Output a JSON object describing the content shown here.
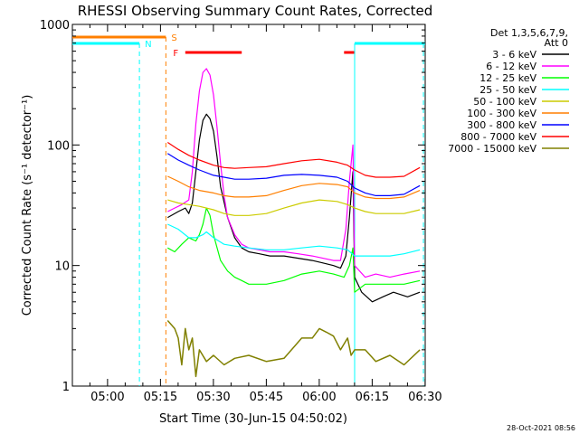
{
  "chart_data": {
    "type": "line",
    "title": "RHESSI Observing Summary Count Rates, Corrected",
    "xlabel": "Start Time (30-Jun-15 04:50:02)",
    "ylabel": "Corrected Count Rate (s⁻¹ detector⁻¹)",
    "yscale": "log",
    "ylim": [
      1,
      1000
    ],
    "xlim_minutes": [
      0,
      100
    ],
    "x_ticks": [
      {
        "min": 9.97,
        "label": "05:00"
      },
      {
        "min": 24.97,
        "label": "05:15"
      },
      {
        "min": 39.97,
        "label": "05:30"
      },
      {
        "min": 54.97,
        "label": "05:45"
      },
      {
        "min": 69.97,
        "label": "06:00"
      },
      {
        "min": 84.97,
        "label": "06:15"
      },
      {
        "min": 99.97,
        "label": "06:30"
      }
    ],
    "y_ticks": [
      {
        "value": 1,
        "label": "1"
      },
      {
        "value": 10,
        "label": "10"
      },
      {
        "value": 100,
        "label": "100"
      },
      {
        "value": 1000,
        "label": "1000"
      }
    ],
    "legend_header": [
      "Det 1,3,5,6,7,9,",
      "Att 0"
    ],
    "timestamp": "28-Oct-2021 08:56",
    "annotations": [
      {
        "label": "S",
        "color": "#ff7f00",
        "kind": "SAA"
      },
      {
        "label": "N",
        "color": "#00ffff",
        "kind": "Night"
      },
      {
        "label": "F",
        "color": "#ff0000",
        "kind": "Flare"
      }
    ],
    "intervals": {
      "saa_bar": [
        0,
        26.5
      ],
      "night_bars": [
        [
          0,
          19
        ],
        [
          80,
          100
        ]
      ],
      "flare_bars": [
        [
          32,
          48
        ],
        [
          77,
          80
        ]
      ],
      "cyan_lines": [
        19,
        80,
        99.5
      ],
      "orange_line": 26.5
    },
    "series": [
      {
        "name": "3 - 6 keV",
        "color": "#000000",
        "x": [
          27,
          30,
          32,
          33,
          34,
          35,
          36,
          37,
          38,
          39,
          40,
          41,
          42,
          44,
          46,
          48,
          50,
          53,
          56,
          60,
          64,
          68,
          71,
          74,
          76,
          77.5,
          78.5,
          79.5,
          80,
          82,
          85,
          88,
          91,
          95,
          98.5
        ],
        "y": [
          25,
          28,
          30,
          27,
          33,
          60,
          110,
          160,
          180,
          165,
          130,
          80,
          45,
          25,
          17,
          14,
          13,
          12.5,
          12,
          12,
          11.5,
          11,
          10.5,
          10,
          9.5,
          12,
          25,
          60,
          8,
          6,
          5,
          5.5,
          6,
          5.5,
          6
        ]
      },
      {
        "name": "6 - 12 keV",
        "color": "#ff00ff",
        "x": [
          27,
          29,
          31,
          33,
          34,
          35,
          36,
          37,
          38,
          39,
          40,
          41,
          42,
          43,
          44,
          46,
          48,
          50,
          53,
          56,
          60,
          64,
          68,
          71,
          74,
          76,
          77.5,
          78.5,
          79.5,
          80,
          83,
          86,
          90,
          94,
          98.5
        ],
        "y": [
          28,
          30,
          32,
          35,
          60,
          150,
          280,
          400,
          430,
          380,
          260,
          140,
          70,
          38,
          25,
          18,
          15,
          14,
          13.5,
          13,
          13,
          12.5,
          12,
          11.5,
          11,
          11,
          20,
          50,
          100,
          10,
          8,
          8.5,
          8,
          8.5,
          9
        ]
      },
      {
        "name": "12 - 25 keV",
        "color": "#00ff00",
        "x": [
          27,
          29,
          31,
          33,
          35,
          36,
          37,
          38,
          39,
          40,
          42,
          44,
          46,
          48,
          50,
          55,
          60,
          65,
          70,
          74,
          77,
          78.5,
          79.5,
          80,
          83,
          86,
          90,
          94,
          98.5
        ],
        "y": [
          14,
          13,
          15,
          17,
          16,
          18,
          22,
          30,
          26,
          18,
          11,
          9,
          8,
          7.5,
          7,
          7,
          7.5,
          8.5,
          9,
          8.5,
          8,
          10,
          14,
          6,
          7,
          7,
          7,
          7,
          7.5
        ]
      },
      {
        "name": "25 - 50 keV",
        "color": "#00ffff",
        "x": [
          27,
          30,
          33,
          35,
          37,
          38,
          40,
          43,
          46,
          50,
          55,
          60,
          65,
          70,
          75,
          78,
          80,
          83,
          86,
          90,
          94,
          98.5
        ],
        "y": [
          22,
          20,
          17,
          17,
          18,
          19,
          17,
          15,
          14.5,
          14,
          13.5,
          13.5,
          14,
          14.5,
          14,
          13.5,
          12,
          12,
          12,
          12,
          12.5,
          13.5
        ]
      },
      {
        "name": "50 - 100 keV",
        "color": "#cccc00",
        "x": [
          27,
          30,
          33,
          36,
          40,
          43,
          46,
          50,
          55,
          60,
          65,
          70,
          75,
          78,
          80,
          83,
          86,
          90,
          94,
          98.5
        ],
        "y": [
          35,
          33,
          32,
          31,
          29,
          27,
          26,
          26,
          27,
          30,
          33,
          35,
          34,
          32,
          30,
          28,
          27,
          27,
          27,
          29
        ]
      },
      {
        "name": "100 - 300 keV",
        "color": "#ff7f00",
        "x": [
          27,
          30,
          33,
          36,
          40,
          43,
          46,
          50,
          55,
          60,
          65,
          70,
          75,
          78,
          80,
          83,
          86,
          90,
          94,
          98.5
        ],
        "y": [
          55,
          50,
          45,
          42,
          40,
          38,
          37,
          37,
          38,
          42,
          46,
          48,
          47,
          45,
          40,
          37,
          36,
          36,
          37,
          42
        ]
      },
      {
        "name": "300 - 800 keV",
        "color": "#0000ff",
        "x": [
          27,
          30,
          33,
          36,
          40,
          43,
          46,
          50,
          55,
          60,
          65,
          70,
          75,
          78,
          80,
          83,
          86,
          90,
          94,
          98.5
        ],
        "y": [
          85,
          75,
          68,
          62,
          56,
          54,
          52,
          52,
          53,
          56,
          57,
          56,
          54,
          50,
          44,
          40,
          38,
          38,
          39,
          46
        ]
      },
      {
        "name": "800 - 7000 keV",
        "color": "#ff0000",
        "x": [
          27,
          30,
          33,
          36,
          40,
          43,
          46,
          50,
          55,
          60,
          65,
          70,
          75,
          78,
          80,
          83,
          86,
          90,
          94,
          98.5
        ],
        "y": [
          105,
          92,
          82,
          75,
          68,
          65,
          64,
          65,
          66,
          70,
          74,
          76,
          72,
          68,
          62,
          56,
          54,
          54,
          55,
          65
        ]
      },
      {
        "name": "7000 - 15000 keV",
        "color": "#808000",
        "x": [
          27,
          29,
          30,
          31,
          32,
          33,
          34,
          35,
          36,
          38,
          40,
          43,
          46,
          50,
          55,
          60,
          65,
          68,
          70,
          72,
          74,
          76,
          78,
          79,
          80,
          83,
          86,
          90,
          94,
          98.5
        ],
        "y": [
          3.5,
          3,
          2.5,
          1.5,
          3,
          2,
          2.5,
          1.2,
          2,
          1.6,
          1.8,
          1.5,
          1.7,
          1.8,
          1.6,
          1.7,
          2.5,
          2.5,
          3,
          2.8,
          2.6,
          2,
          2.5,
          1.8,
          2,
          2,
          1.6,
          1.8,
          1.5,
          2
        ]
      }
    ]
  }
}
